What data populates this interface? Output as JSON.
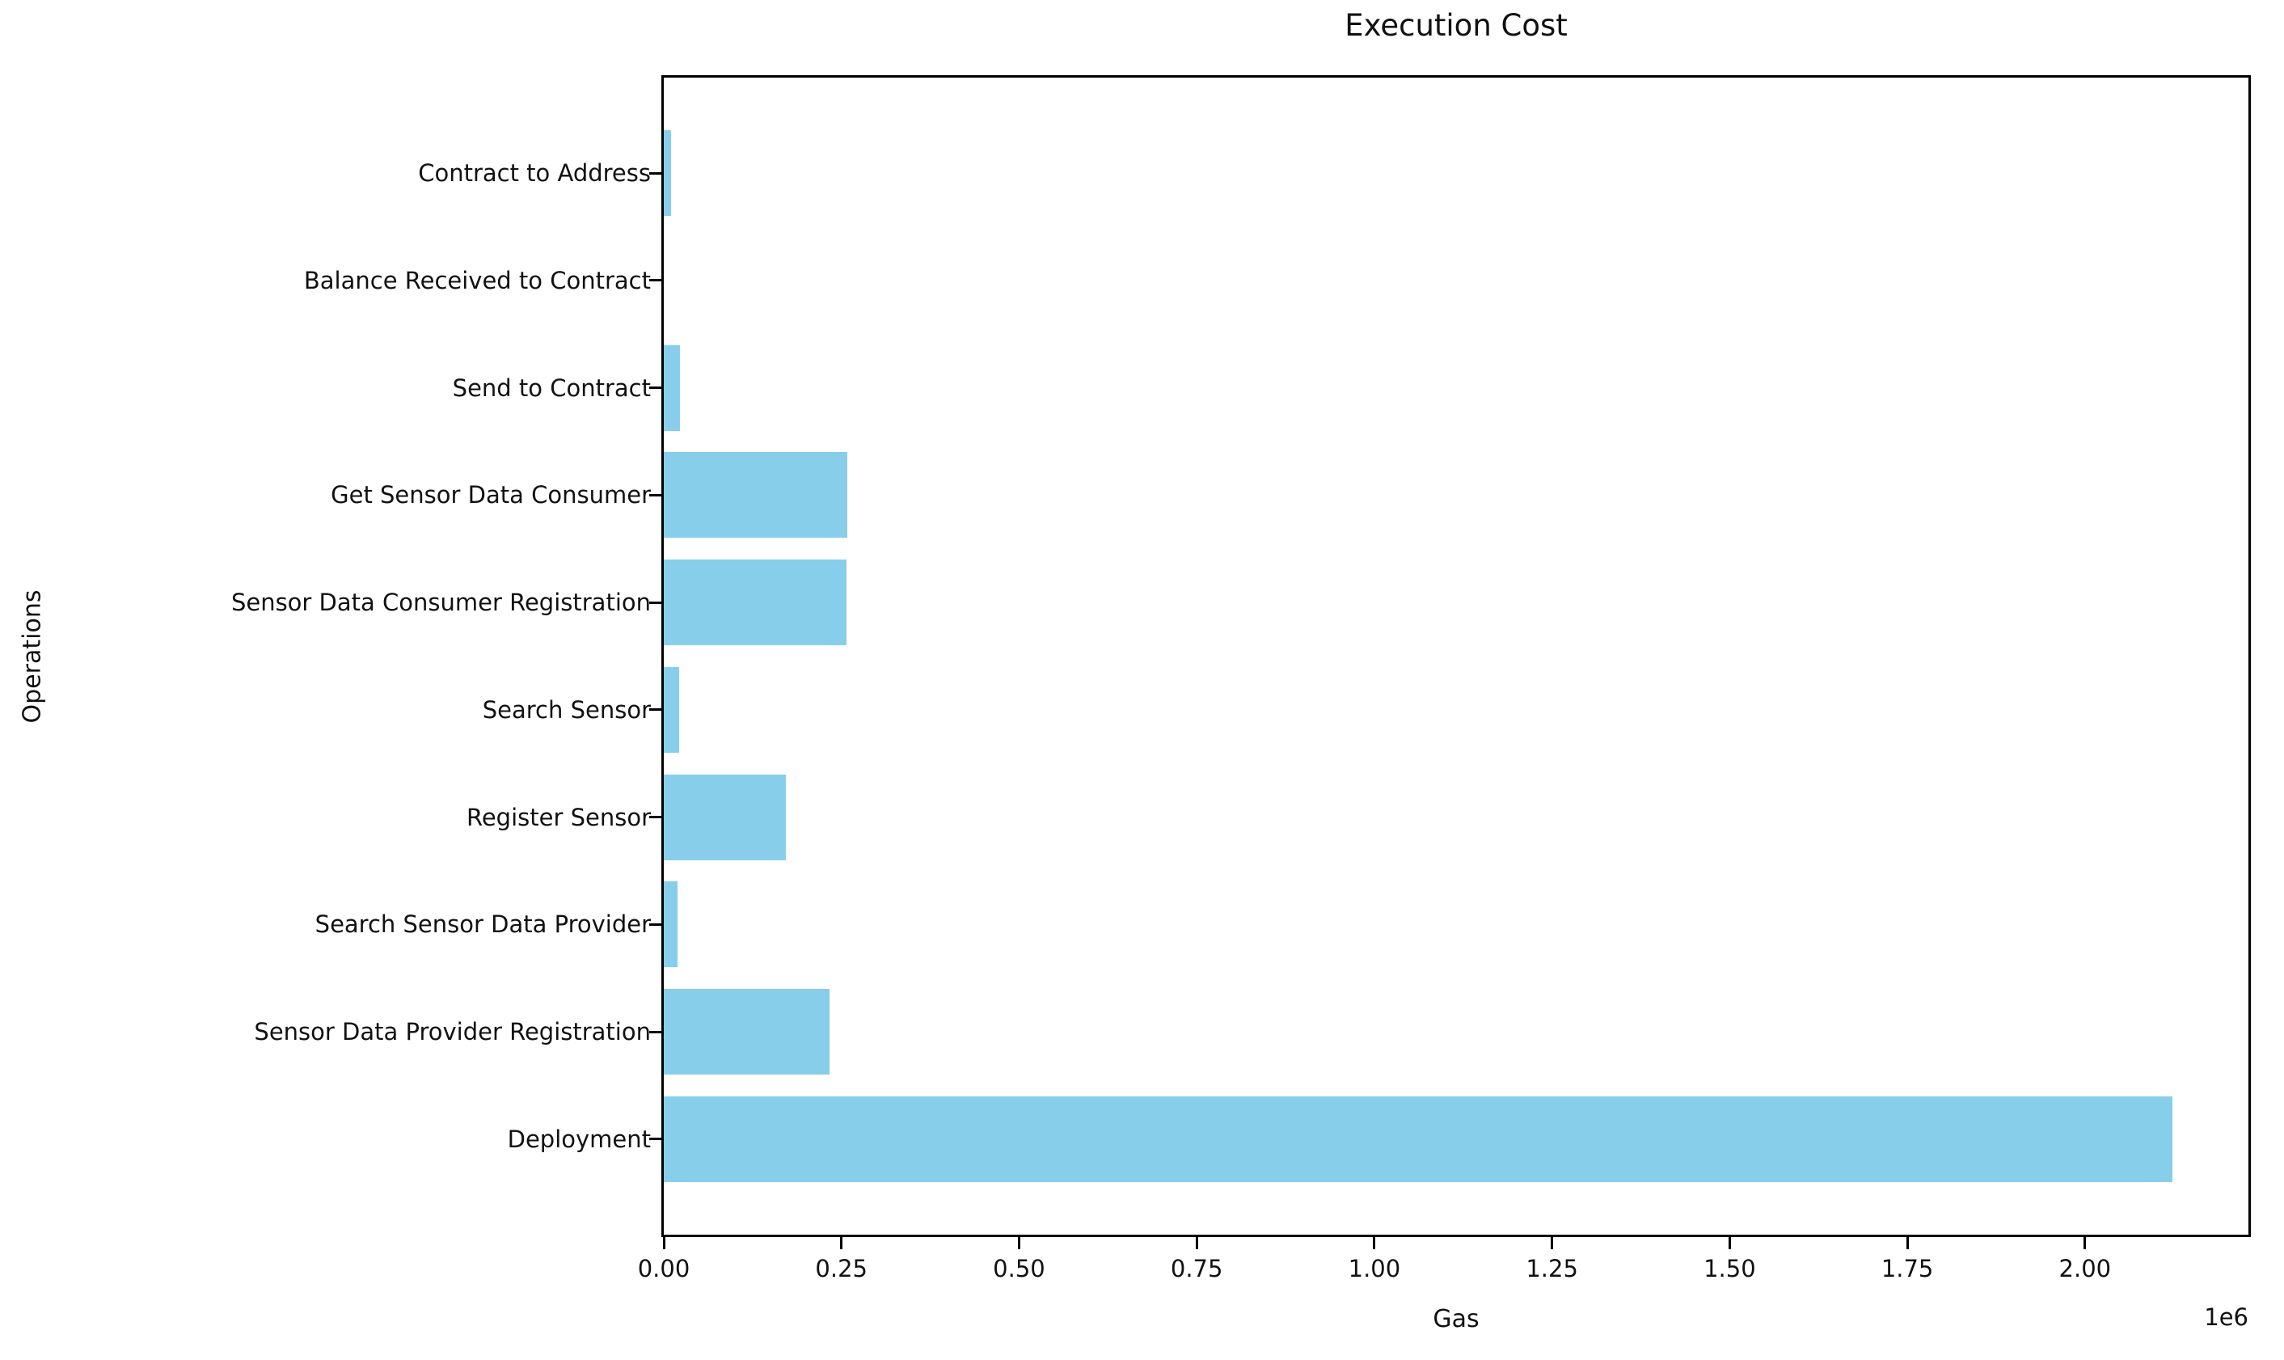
{
  "title": "Execution Cost",
  "colors": {
    "bar": "#87CEEB",
    "axis": "#000000",
    "text": "#111111",
    "background": "#FFFFFF"
  },
  "chart_data": {
    "type": "bar",
    "orientation": "horizontal",
    "title": "Execution Cost",
    "xlabel": "Gas",
    "ylabel": "Operations",
    "x_offset_label": "1e6",
    "grid": false,
    "legend": null,
    "bar_color": "#87CEEB",
    "categories_top_to_bottom": [
      "Contract to Address",
      "Balance Received to Contract",
      "Send to Contract",
      "Get Sensor Data Consumer",
      "Sensor Data Consumer Registration",
      "Search Sensor",
      "Register Sensor",
      "Search Sensor Data Provider",
      "Sensor Data Provider Registration",
      "Deployment"
    ],
    "values_top_to_bottom": [
      10000,
      0,
      23000,
      258000,
      257000,
      22000,
      172000,
      19000,
      233000,
      2123000
    ],
    "xlim": [
      0,
      2230000
    ],
    "xticks": [
      0,
      250000,
      500000,
      750000,
      1000000,
      1250000,
      1500000,
      1750000,
      2000000
    ],
    "xtick_labels": [
      "0.00",
      "0.25",
      "0.50",
      "0.75",
      "1.00",
      "1.25",
      "1.50",
      "1.75",
      "2.00"
    ]
  }
}
